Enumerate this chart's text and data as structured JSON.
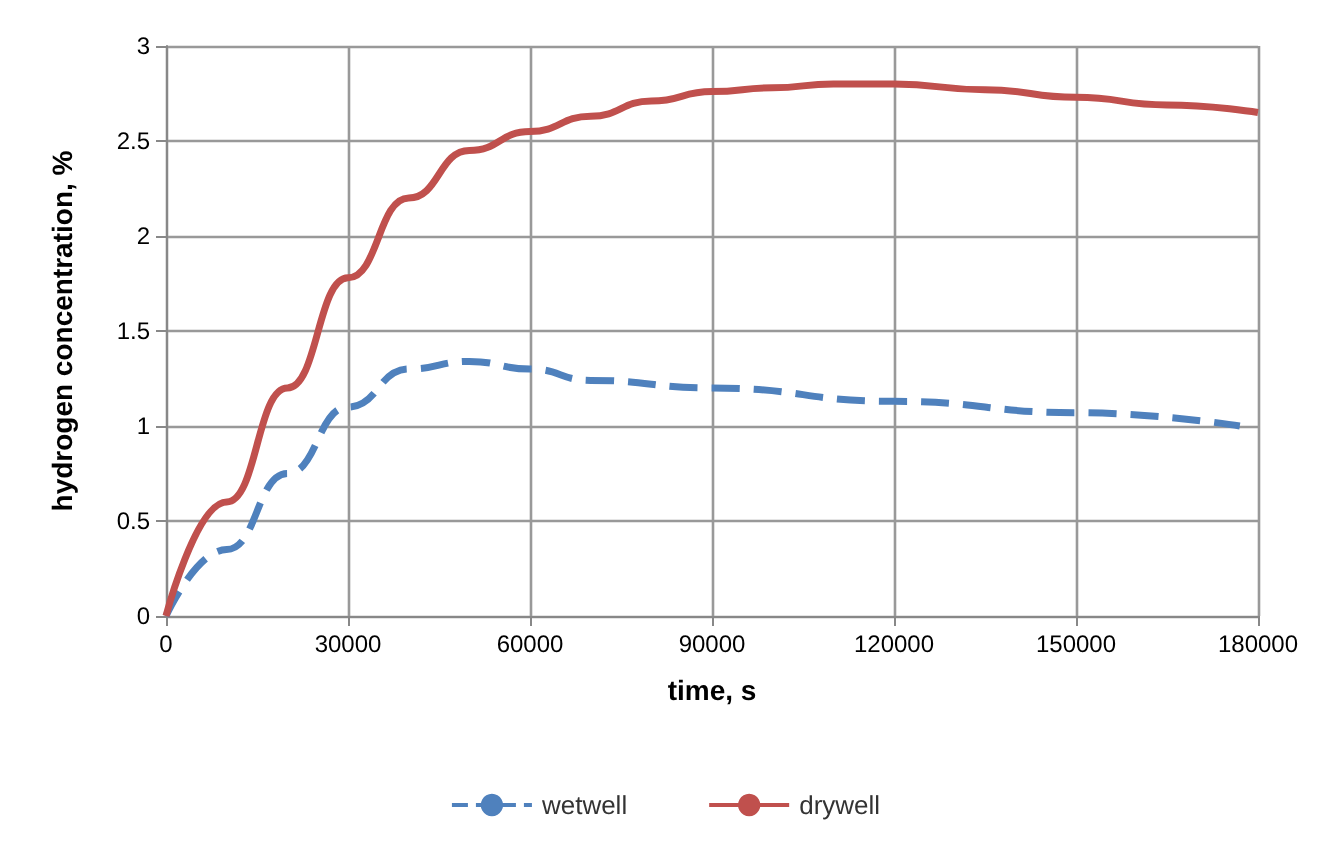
{
  "chart_data": {
    "type": "line",
    "xlabel": "time, s",
    "ylabel": "hydrogen concentration, %",
    "xlim": [
      0,
      180000
    ],
    "xticks": [
      0,
      30000,
      60000,
      90000,
      120000,
      150000,
      180000
    ],
    "ylim": [
      0,
      3
    ],
    "yticks": [
      0,
      0.5,
      1,
      1.5,
      2,
      2.5,
      3
    ],
    "grid": true,
    "legend": "bottom",
    "marker": "none",
    "series": [
      {
        "name": "wetwell",
        "color": "#4f81bd",
        "line_style": "dashed",
        "x": [
          0,
          10000,
          20000,
          30000,
          40000,
          50000,
          60000,
          70000,
          90000,
          120000,
          150000,
          177000
        ],
        "values": [
          0,
          0.35,
          0.75,
          1.1,
          1.3,
          1.34,
          1.3,
          1.24,
          1.2,
          1.13,
          1.07,
          1.0
        ]
      },
      {
        "name": "drywell",
        "color": "#c0504d",
        "line_style": "solid",
        "x": [
          0,
          10000,
          20000,
          30000,
          40000,
          50000,
          60000,
          70000,
          80000,
          90000,
          100000,
          110000,
          120000,
          135000,
          150000,
          165000,
          180000
        ],
        "values": [
          0,
          0.6,
          1.2,
          1.78,
          2.2,
          2.45,
          2.55,
          2.63,
          2.71,
          2.76,
          2.78,
          2.8,
          2.8,
          2.77,
          2.73,
          2.69,
          2.65
        ]
      }
    ]
  }
}
